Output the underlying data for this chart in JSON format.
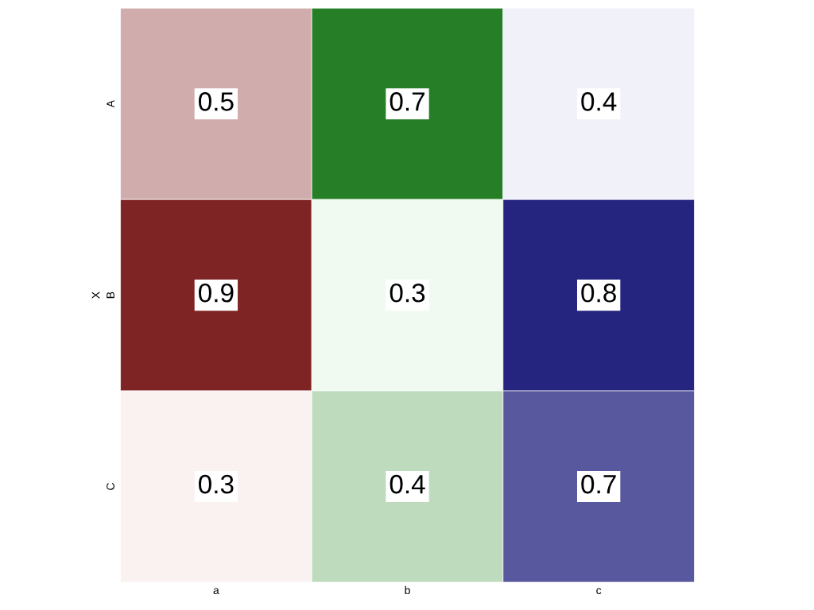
{
  "chart_data": {
    "type": "heatmap",
    "ylabel": "X",
    "categories": [
      "a",
      "b",
      "c"
    ],
    "y_categories": [
      "A",
      "B",
      "C"
    ],
    "cells": [
      [
        0.5,
        0.7,
        0.4
      ],
      [
        0.9,
        0.3,
        0.8
      ],
      [
        0.3,
        0.4,
        0.7
      ]
    ],
    "colors": [
      "#7f2424",
      "#267f26",
      "#25257f"
    ],
    "data_labels": true
  }
}
